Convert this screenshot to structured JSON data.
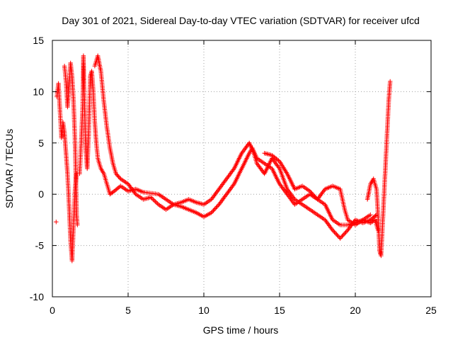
{
  "chart_data": {
    "type": "scatter",
    "title": "Day 301 of 2021, Sidereal Day-to-day VTEC variation (SDTVAR) for receiver ufcd",
    "xlabel": "GPS time / hours",
    "ylabel": "SDTVAR / TECUs",
    "xlim": [
      0,
      25
    ],
    "ylim": [
      -10,
      15
    ],
    "xticks": [
      0,
      5,
      10,
      15,
      20,
      25
    ],
    "yticks": [
      -10,
      -5,
      0,
      5,
      10,
      15
    ],
    "grid": true,
    "marker": "+",
    "color": "#ff0000",
    "series": [
      {
        "name": "SDTVAR",
        "strands": [
          [
            [
              0.25,
              -2.7
            ]
          ],
          [
            [
              0.3,
              9.5
            ],
            [
              0.4,
              10.8
            ],
            [
              0.5,
              8.2
            ],
            [
              0.6,
              5.5
            ],
            [
              0.7,
              7.0
            ],
            [
              0.8,
              6.0
            ],
            [
              0.9,
              4.0
            ],
            [
              1.0,
              2.0
            ],
            [
              1.1,
              -1.0
            ],
            [
              1.2,
              -4.5
            ],
            [
              1.3,
              -6.5
            ],
            [
              1.4,
              -3.0
            ],
            [
              1.5,
              0.5
            ],
            [
              1.6,
              2.0
            ]
          ],
          [
            [
              0.8,
              12.5
            ],
            [
              0.9,
              11.0
            ],
            [
              1.0,
              8.5
            ],
            [
              1.1,
              10.5
            ],
            [
              1.2,
              12.8
            ],
            [
              1.3,
              11.5
            ],
            [
              1.4,
              9.0
            ],
            [
              1.5,
              5.0
            ],
            [
              1.55,
              1.5
            ],
            [
              1.6,
              -2.0
            ],
            [
              1.65,
              -3.0
            ]
          ],
          [
            [
              1.8,
              2.0
            ],
            [
              1.9,
              5.0
            ],
            [
              2.0,
              8.5
            ],
            [
              2.05,
              13.5
            ],
            [
              2.1,
              10.0
            ],
            [
              2.2,
              4.5
            ],
            [
              2.3,
              2.5
            ],
            [
              2.4,
              6.0
            ],
            [
              2.5,
              11.5
            ],
            [
              2.6,
              12.0
            ],
            [
              2.7,
              10.0
            ],
            [
              2.8,
              7.0
            ],
            [
              2.9,
              5.0
            ],
            [
              3.0,
              3.5
            ],
            [
              3.2,
              2.5
            ],
            [
              3.4,
              2.0
            ],
            [
              3.6,
              1.0
            ],
            [
              3.8,
              0.0
            ],
            [
              4.0,
              0.2
            ],
            [
              4.5,
              0.8
            ],
            [
              5.0,
              0.3
            ],
            [
              5.5,
              0.5
            ],
            [
              6.0,
              0.2
            ],
            [
              6.5,
              0.1
            ],
            [
              7.0,
              0.0
            ],
            [
              7.5,
              -0.5
            ],
            [
              8.0,
              -1.0
            ],
            [
              8.5,
              -1.2
            ],
            [
              9.0,
              -1.5
            ],
            [
              9.5,
              -1.8
            ],
            [
              10.0,
              -2.2
            ],
            [
              10.5,
              -1.8
            ],
            [
              11.0,
              -1.0
            ],
            [
              11.5,
              0.0
            ],
            [
              12.0,
              1.0
            ],
            [
              12.5,
              2.5
            ],
            [
              13.0,
              4.0
            ],
            [
              13.2,
              4.5
            ],
            [
              13.5,
              3.5
            ],
            [
              14.0,
              3.0
            ],
            [
              14.5,
              2.5
            ],
            [
              15.0,
              1.0
            ],
            [
              15.5,
              0.0
            ],
            [
              16.0,
              -1.0
            ],
            [
              16.5,
              -0.5
            ],
            [
              17.0,
              0.0
            ],
            [
              17.5,
              -0.5
            ],
            [
              18.0,
              -1.0
            ],
            [
              18.5,
              -2.5
            ],
            [
              19.0,
              -3.0
            ],
            [
              19.5,
              -3.0
            ],
            [
              20.0,
              -2.8
            ],
            [
              20.5,
              -2.5
            ],
            [
              21.0,
              -2.8
            ],
            [
              21.3,
              -2.5
            ],
            [
              21.5,
              -3.5
            ]
          ],
          [
            [
              2.8,
              12.5
            ],
            [
              3.0,
              13.5
            ],
            [
              3.2,
              12.0
            ],
            [
              3.4,
              9.0
            ],
            [
              3.6,
              6.5
            ],
            [
              3.8,
              4.5
            ],
            [
              4.0,
              3.0
            ],
            [
              4.2,
              2.0
            ],
            [
              4.5,
              1.5
            ],
            [
              5.0,
              1.0
            ],
            [
              5.5,
              0.0
            ],
            [
              6.0,
              -0.5
            ],
            [
              6.5,
              -0.3
            ],
            [
              7.0,
              -1.0
            ],
            [
              7.5,
              -1.5
            ],
            [
              8.0,
              -1.0
            ],
            [
              8.5,
              -0.8
            ],
            [
              9.0,
              -0.5
            ],
            [
              9.5,
              -0.8
            ],
            [
              10.0,
              -1.0
            ],
            [
              10.5,
              -0.5
            ],
            [
              11.0,
              0.5
            ],
            [
              11.5,
              1.5
            ],
            [
              12.0,
              2.5
            ],
            [
              12.5,
              4.0
            ],
            [
              13.0,
              5.0
            ],
            [
              13.3,
              4.0
            ],
            [
              13.5,
              3.0
            ],
            [
              14.0,
              2.0
            ],
            [
              14.5,
              3.5
            ],
            [
              15.0,
              2.5
            ],
            [
              15.5,
              0.5
            ],
            [
              16.0,
              -0.5
            ],
            [
              16.5,
              -1.0
            ],
            [
              17.0,
              -1.5
            ],
            [
              17.5,
              -2.0
            ],
            [
              18.0,
              -2.5
            ],
            [
              18.5,
              -3.5
            ],
            [
              19.0,
              -4.3
            ],
            [
              19.5,
              -3.5
            ],
            [
              20.0,
              -2.5
            ],
            [
              20.5,
              -2.8
            ],
            [
              21.0,
              -2.5
            ],
            [
              21.4,
              -2.0
            ]
          ],
          [
            [
              14.0,
              4.0
            ],
            [
              14.5,
              3.8
            ],
            [
              15.0,
              3.2
            ],
            [
              15.5,
              2.0
            ],
            [
              16.0,
              0.5
            ],
            [
              16.5,
              0.8
            ],
            [
              17.0,
              0.3
            ],
            [
              17.5,
              -0.5
            ],
            [
              18.0,
              0.5
            ],
            [
              18.5,
              0.8
            ],
            [
              19.0,
              0.5
            ],
            [
              19.3,
              -1.5
            ],
            [
              19.5,
              -2.5
            ],
            [
              20.0,
              -3.0
            ],
            [
              20.5,
              -2.5
            ],
            [
              21.0,
              -2.0
            ]
          ],
          [
            [
              20.8,
              -0.5
            ],
            [
              21.0,
              1.0
            ],
            [
              21.2,
              1.5
            ],
            [
              21.4,
              0.5
            ],
            [
              21.5,
              -2.0
            ],
            [
              21.6,
              -5.5
            ],
            [
              21.7,
              -6.0
            ],
            [
              21.8,
              -3.0
            ],
            [
              21.9,
              0.0
            ],
            [
              22.0,
              3.0
            ],
            [
              22.1,
              6.0
            ],
            [
              22.2,
              9.0
            ],
            [
              22.3,
              11.0
            ]
          ]
        ]
      }
    ]
  }
}
